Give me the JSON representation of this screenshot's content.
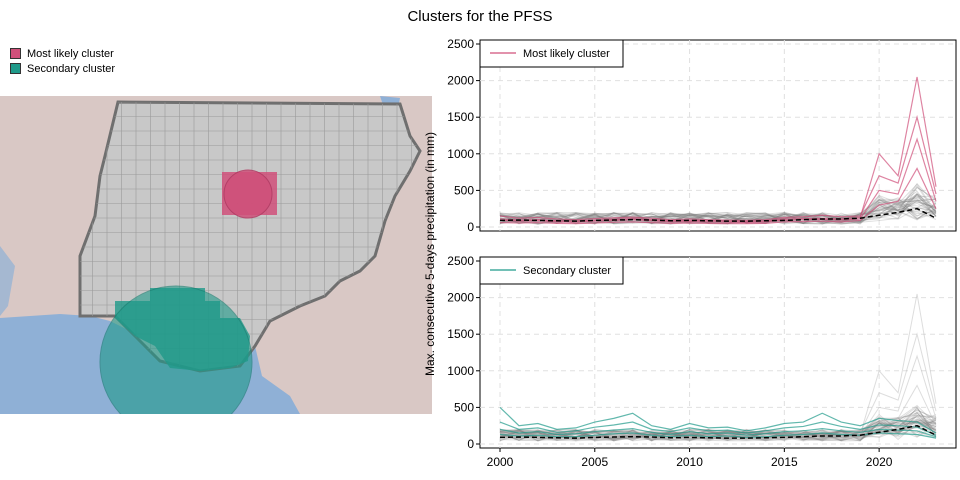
{
  "title": "Clusters for the PFSS",
  "map_legend": [
    {
      "label": "Most likely cluster",
      "color": "#d0507a"
    },
    {
      "label": "Secondary cluster",
      "color": "#1f9a8a"
    }
  ],
  "colors": {
    "most_likely": "#d0507a",
    "secondary": "#1f9a8a",
    "background_series": "#7a7a7a",
    "median": "#000000",
    "map_land": "#d9c8c5",
    "map_water": "#8fb0d6",
    "map_country": "#c8c8c8"
  },
  "chart_data": [
    {
      "type": "line",
      "legend": "Most likely cluster",
      "legend_position": "top-left",
      "xlim": [
        2000,
        2023
      ],
      "ylim": [
        0,
        2500
      ],
      "x_ticks": [
        2000,
        2005,
        2010,
        2015,
        2020
      ],
      "y_ticks": [
        0,
        500,
        1000,
        1500,
        2000,
        2500
      ],
      "grid": true,
      "x": [
        2000,
        2001,
        2002,
        2003,
        2004,
        2005,
        2006,
        2007,
        2008,
        2009,
        2010,
        2011,
        2012,
        2013,
        2014,
        2015,
        2016,
        2017,
        2018,
        2019,
        2020,
        2021,
        2022,
        2023
      ],
      "series": [
        {
          "name": "Most likely cluster",
          "values": [
            110,
            95,
            100,
            85,
            80,
            95,
            105,
            115,
            100,
            85,
            90,
            85,
            80,
            75,
            80,
            110,
            115,
            120,
            110,
            130,
            1000,
            700,
            2050,
            550
          ]
        },
        {
          "name": "Most likely cluster",
          "values": [
            150,
            120,
            130,
            110,
            100,
            115,
            125,
            135,
            120,
            100,
            110,
            100,
            95,
            90,
            100,
            130,
            140,
            160,
            140,
            150,
            700,
            600,
            1500,
            450
          ]
        },
        {
          "name": "Most likely cluster",
          "values": [
            90,
            80,
            85,
            70,
            65,
            80,
            90,
            100,
            85,
            70,
            75,
            70,
            65,
            60,
            70,
            95,
            100,
            105,
            95,
            110,
            500,
            450,
            1200,
            350
          ]
        },
        {
          "name": "Most likely cluster",
          "values": [
            60,
            55,
            60,
            50,
            45,
            55,
            65,
            70,
            60,
            50,
            55,
            50,
            45,
            45,
            50,
            70,
            75,
            80,
            70,
            90,
            300,
            350,
            800,
            250
          ]
        },
        {
          "name": "Median",
          "values": [
            90,
            95,
            90,
            85,
            80,
            90,
            95,
            100,
            95,
            85,
            90,
            85,
            80,
            80,
            85,
            90,
            100,
            110,
            110,
            120,
            160,
            200,
            250,
            120
          ]
        }
      ]
    },
    {
      "type": "line",
      "legend": "Secondary cluster",
      "legend_position": "top-left",
      "xlim": [
        2000,
        2023
      ],
      "ylim": [
        0,
        2500
      ],
      "x_ticks": [
        2000,
        2005,
        2010,
        2015,
        2020
      ],
      "y_ticks": [
        0,
        500,
        1000,
        1500,
        2000,
        2500
      ],
      "grid": true,
      "x": [
        2000,
        2001,
        2002,
        2003,
        2004,
        2005,
        2006,
        2007,
        2008,
        2009,
        2010,
        2011,
        2012,
        2013,
        2014,
        2015,
        2016,
        2017,
        2018,
        2019,
        2020,
        2021,
        2022,
        2023
      ],
      "series": [
        {
          "name": "Secondary cluster",
          "values": [
            500,
            250,
            280,
            200,
            220,
            300,
            350,
            420,
            250,
            200,
            280,
            220,
            230,
            180,
            220,
            280,
            300,
            420,
            300,
            250,
            350,
            320,
            300,
            150
          ]
        },
        {
          "name": "Secondary cluster",
          "values": [
            300,
            200,
            220,
            160,
            180,
            230,
            260,
            300,
            200,
            170,
            220,
            180,
            190,
            150,
            180,
            220,
            240,
            300,
            240,
            200,
            260,
            250,
            230,
            120
          ]
        },
        {
          "name": "Secondary cluster",
          "values": [
            200,
            150,
            170,
            130,
            140,
            170,
            190,
            210,
            160,
            130,
            170,
            140,
            150,
            120,
            140,
            170,
            180,
            210,
            180,
            160,
            200,
            190,
            180,
            100
          ]
        },
        {
          "name": "Secondary cluster",
          "values": [
            130,
            110,
            120,
            100,
            100,
            120,
            140,
            150,
            120,
            100,
            120,
            100,
            110,
            90,
            100,
            120,
            130,
            150,
            130,
            120,
            150,
            140,
            130,
            80
          ]
        },
        {
          "name": "Median",
          "values": [
            90,
            95,
            90,
            85,
            80,
            90,
            95,
            100,
            95,
            85,
            90,
            85,
            80,
            80,
            85,
            90,
            100,
            110,
            110,
            120,
            160,
            200,
            250,
            120
          ]
        }
      ]
    }
  ],
  "shared_ylabel": "Max. consecutive 5-days precipitation (in mm)"
}
